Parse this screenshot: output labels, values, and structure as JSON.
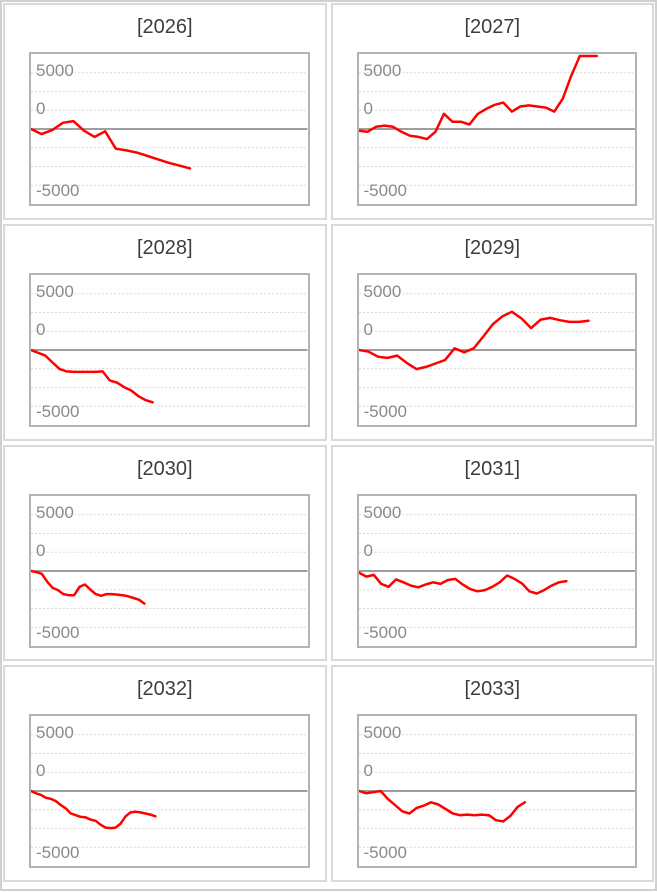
{
  "axis": {
    "labels": [
      "5000",
      "0",
      "-5000"
    ],
    "ylim": [
      -6700,
      6700
    ],
    "zero_line": true,
    "gridlines": "dotted-horizontal"
  },
  "colors": {
    "series": "#ff0000",
    "gridline": "#d9d9d9",
    "zero_line": "#7f7f7f",
    "axis_label": "#8a8a8a",
    "title_text": "#3d3d3d",
    "panel_border": "#d9d9d9",
    "chart_border": "#b3b3b3"
  },
  "chart_data": {
    "type": "line",
    "layout": "small-multiples 4x2",
    "ylabel": "",
    "xlabel": "",
    "ylim": [
      -6700,
      6700
    ],
    "yticks": [
      5000,
      0,
      -5000
    ],
    "grid": true,
    "legend": null,
    "panels": [
      {
        "title": "[2026]",
        "x_span": 0.575,
        "values": [
          0,
          -450,
          -100,
          550,
          700,
          -150,
          -700,
          -200,
          -1750,
          -1900,
          -2100,
          -2400,
          -2700,
          -3000,
          -3250,
          -3500
        ]
      },
      {
        "title": "[2027]",
        "x_span": 0.86,
        "values": [
          -150,
          -250,
          200,
          300,
          200,
          -250,
          -600,
          -700,
          -900,
          -250,
          1350,
          650,
          650,
          400,
          1350,
          1800,
          2150,
          2350,
          1550,
          2000,
          2100,
          2000,
          1900,
          1550,
          2700,
          4750,
          6800,
          7500,
          7600
        ]
      },
      {
        "title": "[2028]",
        "x_span": 0.44,
        "values": [
          0,
          -250,
          -500,
          -1100,
          -1700,
          -1900,
          -1950,
          -1950,
          -1950,
          -1950,
          -1900,
          -2700,
          -2900,
          -3300,
          -3600,
          -4100,
          -4450,
          -4650
        ]
      },
      {
        "title": "[2029]",
        "x_span": 0.83,
        "values": [
          0,
          -150,
          -600,
          -700,
          -500,
          -1150,
          -1700,
          -1500,
          -1200,
          -900,
          150,
          -200,
          150,
          1200,
          2300,
          3000,
          3400,
          2800,
          1950,
          2700,
          2850,
          2650,
          2500,
          2500,
          2600
        ]
      },
      {
        "title": "[2030]",
        "x_span": 0.41,
        "values": [
          0,
          -100,
          -250,
          -950,
          -1500,
          -1700,
          -2050,
          -2150,
          -2150,
          -1400,
          -1200,
          -1650,
          -2050,
          -2200,
          -2050,
          -2050,
          -2100,
          -2150,
          -2250,
          -2400,
          -2550,
          -2900
        ]
      },
      {
        "title": "[2031]",
        "x_span": 0.75,
        "values": [
          -150,
          -500,
          -350,
          -1150,
          -1400,
          -750,
          -1000,
          -1300,
          -1450,
          -1200,
          -1000,
          -1150,
          -800,
          -700,
          -1200,
          -1600,
          -1800,
          -1700,
          -1400,
          -1000,
          -400,
          -700,
          -1100,
          -1800,
          -2000,
          -1700,
          -1300,
          -1000,
          -900
        ]
      },
      {
        "title": "[2032]",
        "x_span": 0.45,
        "values": [
          0,
          -200,
          -350,
          -600,
          -700,
          -900,
          -1250,
          -1550,
          -2000,
          -2150,
          -2300,
          -2350,
          -2550,
          -2650,
          -3000,
          -3250,
          -3300,
          -3250,
          -2900,
          -2250,
          -1900,
          -1850,
          -1900,
          -2000,
          -2100,
          -2250
        ]
      },
      {
        "title": "[2033]",
        "x_span": 0.6,
        "values": [
          0,
          -200,
          -100,
          0,
          -700,
          -1250,
          -1800,
          -2000,
          -1500,
          -1300,
          -1000,
          -1200,
          -1600,
          -2000,
          -2150,
          -2100,
          -2150,
          -2100,
          -2150,
          -2600,
          -2700,
          -2200,
          -1400,
          -1000
        ]
      }
    ]
  }
}
